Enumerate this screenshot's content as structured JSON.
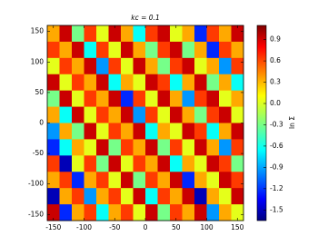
{
  "chart_data": {
    "type": "heatmap",
    "title": "kc = 0.1",
    "colorbar_label": "ln Σ",
    "colormap": "jet",
    "xlim": [
      -160,
      160
    ],
    "ylim": [
      -160,
      160
    ],
    "xticks": [
      -150,
      -100,
      -50,
      0,
      50,
      100,
      150
    ],
    "yticks": [
      -150,
      -100,
      -50,
      0,
      50,
      100,
      150
    ],
    "clim": [
      -1.65,
      1.1
    ],
    "cticks": [
      0.9,
      0.6,
      0.3,
      {
        "value": 0,
        "label": "0.0"
      },
      -0.3,
      -0.6,
      -0.9,
      -1.2,
      -1.5
    ],
    "z": [
      [
        0.3,
        0.9,
        -0.3,
        0.6,
        0.0,
        0.9,
        0.3,
        -0.6,
        0.6,
        0.9,
        0.0,
        0.3,
        -1.2,
        0.6,
        0.3,
        0.9
      ],
      [
        0.6,
        0.3,
        0.9,
        -0.6,
        0.6,
        0.0,
        0.9,
        0.3,
        -0.3,
        0.6,
        0.9,
        -0.3,
        0.3,
        -1.2,
        0.6,
        0.3
      ],
      [
        0.0,
        0.6,
        0.3,
        0.9,
        -0.9,
        0.6,
        0.0,
        0.9,
        0.3,
        -0.3,
        0.6,
        0.9,
        0.0,
        0.3,
        -0.9,
        0.6
      ],
      [
        0.9,
        0.0,
        0.6,
        0.3,
        0.9,
        -0.6,
        0.3,
        0.0,
        0.9,
        0.6,
        -0.6,
        0.3,
        0.9,
        -0.3,
        0.3,
        -0.6
      ],
      [
        -0.3,
        0.9,
        0.0,
        0.6,
        0.3,
        0.9,
        -1.2,
        0.6,
        0.0,
        0.9,
        0.3,
        -0.9,
        0.6,
        0.9,
        0.0,
        0.3
      ],
      [
        0.3,
        -0.6,
        0.9,
        0.0,
        0.6,
        0.3,
        0.9,
        -0.9,
        0.6,
        0.0,
        0.9,
        0.3,
        -0.3,
        0.6,
        0.9,
        0.0
      ],
      [
        -0.9,
        0.3,
        -0.3,
        0.9,
        0.0,
        0.6,
        0.3,
        0.9,
        -0.6,
        0.3,
        0.0,
        0.9,
        0.6,
        -0.6,
        0.3,
        0.9
      ],
      [
        -1.2,
        -0.6,
        0.3,
        0.0,
        0.9,
        -0.3,
        0.6,
        0.3,
        0.9,
        -0.3,
        0.6,
        0.0,
        0.9,
        0.3,
        -0.9,
        0.6
      ],
      [
        0.6,
        -1.5,
        0.0,
        0.6,
        -0.3,
        0.9,
        0.0,
        0.6,
        0.3,
        0.9,
        -0.6,
        0.3,
        0.0,
        0.9,
        0.6,
        -0.3
      ],
      [
        0.3,
        0.6,
        -1.2,
        0.3,
        0.6,
        0.0,
        0.9,
        -0.3,
        0.6,
        0.3,
        0.9,
        -1.2,
        0.3,
        0.0,
        0.9,
        0.6
      ],
      [
        -1.5,
        0.3,
        0.6,
        -0.9,
        0.3,
        0.6,
        0.0,
        0.9,
        -0.6,
        0.6,
        0.3,
        0.9,
        -1.5,
        0.3,
        0.0,
        0.9
      ],
      [
        0.9,
        -1.2,
        0.3,
        0.6,
        -0.6,
        0.3,
        0.6,
        0.0,
        0.9,
        -0.3,
        0.6,
        0.3,
        0.9,
        -0.9,
        0.3,
        0.0
      ]
    ]
  }
}
